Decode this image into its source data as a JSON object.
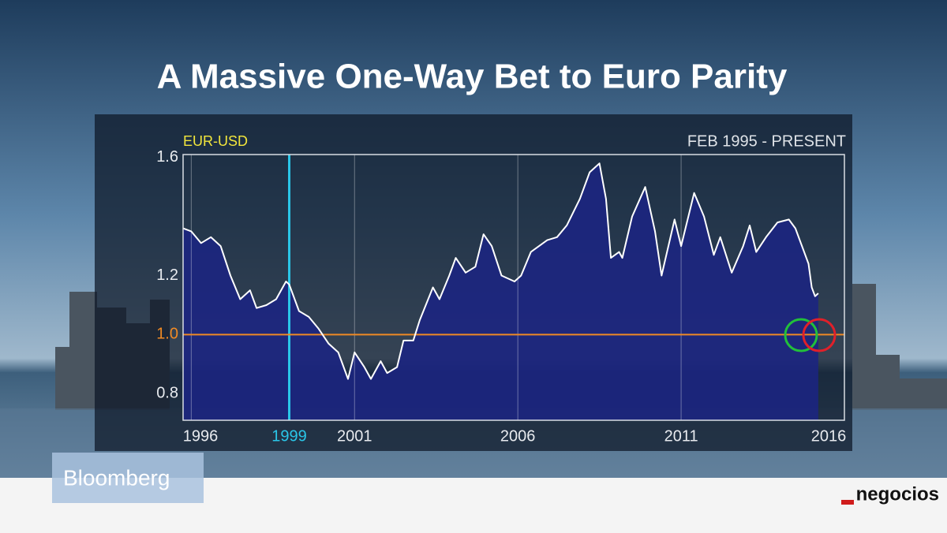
{
  "chart_data": {
    "type": "area",
    "title": "A Massive One-Way Bet to Euro Parity",
    "series_label": "EUR-USD",
    "date_range": "FEB 1995 - PRESENT",
    "x": [
      1995.75,
      1996.0,
      1996.3,
      1996.6,
      1996.9,
      1997.2,
      1997.5,
      1997.8,
      1998.0,
      1998.3,
      1998.6,
      1998.9,
      1999.0,
      1999.3,
      1999.6,
      1999.9,
      2000.2,
      2000.5,
      2000.8,
      2001.0,
      2001.3,
      2001.5,
      2001.8,
      2002.0,
      2002.3,
      2002.5,
      2002.8,
      2003.0,
      2003.4,
      2003.6,
      2003.9,
      2004.1,
      2004.4,
      2004.7,
      2004.95,
      2005.2,
      2005.5,
      2005.9,
      2006.1,
      2006.4,
      2006.9,
      2007.2,
      2007.5,
      2007.9,
      2008.2,
      2008.5,
      2008.7,
      2008.85,
      2009.1,
      2009.2,
      2009.5,
      2009.9,
      2010.2,
      2010.4,
      2010.8,
      2011.0,
      2011.4,
      2011.7,
      2012.0,
      2012.2,
      2012.55,
      2012.9,
      2013.1,
      2013.3,
      2013.6,
      2013.95,
      2014.3,
      2014.5,
      2014.9,
      2015.0,
      2015.1,
      2015.2
    ],
    "values": [
      1.36,
      1.35,
      1.31,
      1.33,
      1.3,
      1.2,
      1.12,
      1.15,
      1.09,
      1.1,
      1.12,
      1.18,
      1.17,
      1.08,
      1.06,
      1.02,
      0.97,
      0.94,
      0.85,
      0.94,
      0.89,
      0.85,
      0.91,
      0.87,
      0.89,
      0.98,
      0.98,
      1.05,
      1.16,
      1.12,
      1.2,
      1.26,
      1.21,
      1.23,
      1.34,
      1.3,
      1.2,
      1.18,
      1.2,
      1.28,
      1.32,
      1.33,
      1.37,
      1.46,
      1.55,
      1.58,
      1.46,
      1.26,
      1.28,
      1.26,
      1.4,
      1.5,
      1.35,
      1.2,
      1.39,
      1.3,
      1.48,
      1.4,
      1.27,
      1.33,
      1.21,
      1.3,
      1.37,
      1.28,
      1.33,
      1.38,
      1.39,
      1.36,
      1.24,
      1.16,
      1.13,
      1.14
    ],
    "color": "#1b2482",
    "line_color": "#ffffff",
    "xlim": [
      1995.75,
      2016
    ],
    "ylim": [
      0.71,
      1.61
    ],
    "xticks": [
      1996,
      1999,
      2001,
      2006,
      2011,
      2016
    ],
    "yticks": [
      0.8,
      {
        "value": 1,
        "label": "1.0"
      },
      1.2,
      1.6
    ],
    "grid": "x",
    "ref_y": 1,
    "ref_color": "#f08a24",
    "highlight_x": 1999,
    "highlight_color": "#2ac6e8"
  },
  "brand": "Bloomberg",
  "source": "negocios"
}
